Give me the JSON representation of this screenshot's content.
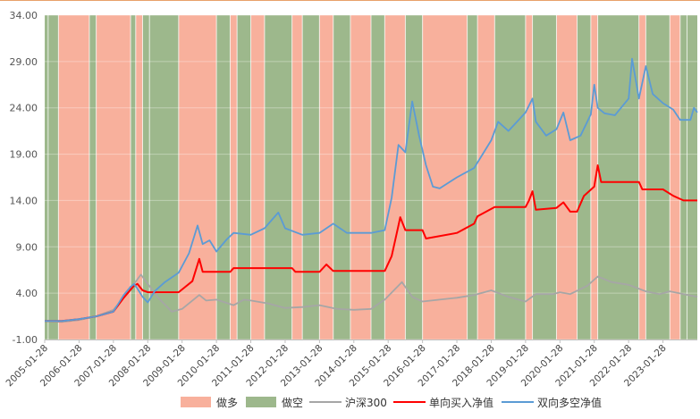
{
  "chart_data": {
    "type": "line",
    "title": "",
    "xlabel": "",
    "ylabel": "",
    "ylim": [
      -1.0,
      34.0
    ],
    "y_ticks": [
      "34.00",
      "29.00",
      "24.00",
      "19.00",
      "14.00",
      "9.00",
      "4.00",
      "-1.00"
    ],
    "x_ticks": [
      "2005-01-28",
      "2006-01-28",
      "2007-01-28",
      "2008-01-28",
      "2009-01-28",
      "2010-01-28",
      "2011-01-28",
      "2012-01-28",
      "2013-01-28",
      "2014-01-28",
      "2015-01-28",
      "2016-01-28",
      "2017-01-28",
      "2018-01-28",
      "2019-01-28",
      "2020-01-28",
      "2021-01-28",
      "2022-01-28",
      "2023-01-28"
    ],
    "x_range": [
      2005.0,
      2024.0
    ],
    "legend": [
      "做多",
      "做空",
      "沪深300",
      "单向买入净值",
      "双向多空净值"
    ],
    "colors": {
      "long": "#f8b09c",
      "short": "#9db88c",
      "hs300": "#a6a6a6",
      "one_way": "#ff0000",
      "two_way": "#5b9bd5"
    },
    "regimes": [
      {
        "start": 2005.0,
        "end": 2005.1,
        "state": "short"
      },
      {
        "start": 2005.1,
        "end": 2005.4,
        "state": "short"
      },
      {
        "start": 2005.4,
        "end": 2006.3,
        "state": "long"
      },
      {
        "start": 2006.3,
        "end": 2006.5,
        "state": "short"
      },
      {
        "start": 2006.5,
        "end": 2007.5,
        "state": "long"
      },
      {
        "start": 2007.5,
        "end": 2007.65,
        "state": "short"
      },
      {
        "start": 2007.65,
        "end": 2007.85,
        "state": "long"
      },
      {
        "start": 2007.85,
        "end": 2008.05,
        "state": "short"
      },
      {
        "start": 2008.05,
        "end": 2008.9,
        "state": "short"
      },
      {
        "start": 2008.9,
        "end": 2010.0,
        "state": "long"
      },
      {
        "start": 2010.0,
        "end": 2010.4,
        "state": "short"
      },
      {
        "start": 2010.4,
        "end": 2010.6,
        "state": "long"
      },
      {
        "start": 2010.6,
        "end": 2011.0,
        "state": "short"
      },
      {
        "start": 2011.0,
        "end": 2011.4,
        "state": "long"
      },
      {
        "start": 2011.4,
        "end": 2012.2,
        "state": "short"
      },
      {
        "start": 2012.2,
        "end": 2012.5,
        "state": "long"
      },
      {
        "start": 2012.5,
        "end": 2013.0,
        "state": "short"
      },
      {
        "start": 2013.0,
        "end": 2013.4,
        "state": "long"
      },
      {
        "start": 2013.4,
        "end": 2013.9,
        "state": "short"
      },
      {
        "start": 2013.9,
        "end": 2014.5,
        "state": "long"
      },
      {
        "start": 2014.5,
        "end": 2014.9,
        "state": "short"
      },
      {
        "start": 2014.9,
        "end": 2015.5,
        "state": "long"
      },
      {
        "start": 2015.5,
        "end": 2016.0,
        "state": "short"
      },
      {
        "start": 2016.0,
        "end": 2017.3,
        "state": "long"
      },
      {
        "start": 2017.3,
        "end": 2017.6,
        "state": "short"
      },
      {
        "start": 2017.6,
        "end": 2018.1,
        "state": "long"
      },
      {
        "start": 2018.1,
        "end": 2019.0,
        "state": "short"
      },
      {
        "start": 2019.0,
        "end": 2019.2,
        "state": "long"
      },
      {
        "start": 2019.2,
        "end": 2019.9,
        "state": "short"
      },
      {
        "start": 2019.9,
        "end": 2020.5,
        "state": "long"
      },
      {
        "start": 2020.5,
        "end": 2020.9,
        "state": "short"
      },
      {
        "start": 2020.9,
        "end": 2021.1,
        "state": "long"
      },
      {
        "start": 2021.1,
        "end": 2022.3,
        "state": "short"
      },
      {
        "start": 2022.3,
        "end": 2022.5,
        "state": "long"
      },
      {
        "start": 2022.5,
        "end": 2023.2,
        "state": "short"
      },
      {
        "start": 2023.2,
        "end": 2023.5,
        "state": "long"
      },
      {
        "start": 2023.5,
        "end": 2023.7,
        "state": "short"
      },
      {
        "start": 2023.7,
        "end": 2024.0,
        "state": "short"
      }
    ],
    "series": [
      {
        "name": "沪深300",
        "key": "hs300",
        "points": [
          [
            2005.0,
            1.0
          ],
          [
            2005.5,
            0.9
          ],
          [
            2006.0,
            1.1
          ],
          [
            2006.5,
            1.5
          ],
          [
            2007.0,
            2.2
          ],
          [
            2007.3,
            3.5
          ],
          [
            2007.6,
            5.0
          ],
          [
            2007.8,
            6.0
          ],
          [
            2008.0,
            5.0
          ],
          [
            2008.3,
            3.5
          ],
          [
            2008.7,
            2.0
          ],
          [
            2009.0,
            2.3
          ],
          [
            2009.5,
            3.8
          ],
          [
            2009.7,
            3.2
          ],
          [
            2010.0,
            3.3
          ],
          [
            2010.5,
            2.7
          ],
          [
            2010.8,
            3.3
          ],
          [
            2011.0,
            3.2
          ],
          [
            2011.5,
            2.9
          ],
          [
            2012.0,
            2.4
          ],
          [
            2012.5,
            2.5
          ],
          [
            2013.0,
            2.7
          ],
          [
            2013.5,
            2.3
          ],
          [
            2014.0,
            2.2
          ],
          [
            2014.5,
            2.3
          ],
          [
            2014.9,
            3.3
          ],
          [
            2015.4,
            5.2
          ],
          [
            2015.7,
            3.6
          ],
          [
            2016.0,
            3.1
          ],
          [
            2016.5,
            3.3
          ],
          [
            2017.0,
            3.5
          ],
          [
            2017.5,
            3.8
          ],
          [
            2018.0,
            4.3
          ],
          [
            2018.5,
            3.6
          ],
          [
            2019.0,
            3.1
          ],
          [
            2019.3,
            3.9
          ],
          [
            2019.8,
            3.9
          ],
          [
            2020.0,
            4.1
          ],
          [
            2020.3,
            3.9
          ],
          [
            2020.8,
            4.8
          ],
          [
            2021.1,
            5.8
          ],
          [
            2021.5,
            5.2
          ],
          [
            2022.0,
            4.9
          ],
          [
            2022.5,
            4.2
          ],
          [
            2022.9,
            3.9
          ],
          [
            2023.2,
            4.2
          ],
          [
            2023.6,
            3.9
          ],
          [
            2024.0,
            3.6
          ]
        ]
      },
      {
        "name": "单向买入净值",
        "key": "one_way",
        "points": [
          [
            2005.0,
            1.0
          ],
          [
            2005.5,
            1.0
          ],
          [
            2006.0,
            1.2
          ],
          [
            2006.5,
            1.5
          ],
          [
            2007.0,
            2.0
          ],
          [
            2007.3,
            3.5
          ],
          [
            2007.6,
            4.8
          ],
          [
            2007.7,
            5.0
          ],
          [
            2007.85,
            4.3
          ],
          [
            2008.0,
            4.1
          ],
          [
            2008.9,
            4.1
          ],
          [
            2009.3,
            5.3
          ],
          [
            2009.5,
            7.7
          ],
          [
            2009.6,
            6.3
          ],
          [
            2010.0,
            6.3
          ],
          [
            2010.4,
            6.3
          ],
          [
            2010.5,
            6.7
          ],
          [
            2011.5,
            6.7
          ],
          [
            2012.2,
            6.7
          ],
          [
            2012.3,
            6.3
          ],
          [
            2013.0,
            6.3
          ],
          [
            2013.2,
            7.1
          ],
          [
            2013.4,
            6.4
          ],
          [
            2014.9,
            6.4
          ],
          [
            2015.1,
            8.0
          ],
          [
            2015.3,
            11.3
          ],
          [
            2015.35,
            12.2
          ],
          [
            2015.5,
            10.8
          ],
          [
            2015.6,
            10.8
          ],
          [
            2016.0,
            10.8
          ],
          [
            2016.1,
            9.9
          ],
          [
            2017.0,
            10.5
          ],
          [
            2017.5,
            11.5
          ],
          [
            2017.6,
            12.3
          ],
          [
            2018.1,
            13.3
          ],
          [
            2019.0,
            13.3
          ],
          [
            2019.1,
            14.0
          ],
          [
            2019.2,
            15.0
          ],
          [
            2019.3,
            13.0
          ],
          [
            2019.9,
            13.2
          ],
          [
            2020.1,
            13.8
          ],
          [
            2020.3,
            12.8
          ],
          [
            2020.5,
            12.8
          ],
          [
            2020.7,
            14.5
          ],
          [
            2021.0,
            15.5
          ],
          [
            2021.1,
            17.8
          ],
          [
            2021.2,
            16.0
          ],
          [
            2022.3,
            16.0
          ],
          [
            2022.4,
            15.2
          ],
          [
            2023.0,
            15.2
          ],
          [
            2023.3,
            14.5
          ],
          [
            2023.6,
            14.0
          ],
          [
            2024.0,
            14.0
          ]
        ]
      },
      {
        "name": "双向多空净值",
        "key": "two_way",
        "points": [
          [
            2005.0,
            1.0
          ],
          [
            2005.5,
            1.0
          ],
          [
            2006.0,
            1.2
          ],
          [
            2006.5,
            1.5
          ],
          [
            2007.0,
            2.0
          ],
          [
            2007.3,
            3.8
          ],
          [
            2007.5,
            4.7
          ],
          [
            2007.6,
            5.0
          ],
          [
            2007.7,
            4.5
          ],
          [
            2007.85,
            3.6
          ],
          [
            2008.0,
            3.0
          ],
          [
            2008.2,
            4.2
          ],
          [
            2008.5,
            5.2
          ],
          [
            2008.9,
            6.2
          ],
          [
            2009.2,
            8.3
          ],
          [
            2009.45,
            11.3
          ],
          [
            2009.6,
            9.3
          ],
          [
            2009.8,
            9.7
          ],
          [
            2010.0,
            8.5
          ],
          [
            2010.3,
            9.8
          ],
          [
            2010.5,
            10.5
          ],
          [
            2011.0,
            10.3
          ],
          [
            2011.4,
            11.0
          ],
          [
            2011.8,
            12.7
          ],
          [
            2012.0,
            11.0
          ],
          [
            2012.5,
            10.3
          ],
          [
            2013.0,
            10.5
          ],
          [
            2013.4,
            11.5
          ],
          [
            2013.8,
            10.5
          ],
          [
            2014.5,
            10.5
          ],
          [
            2014.9,
            10.8
          ],
          [
            2015.1,
            14.3
          ],
          [
            2015.3,
            20.0
          ],
          [
            2015.5,
            19.2
          ],
          [
            2015.7,
            24.7
          ],
          [
            2015.9,
            21.0
          ],
          [
            2016.1,
            17.8
          ],
          [
            2016.3,
            15.5
          ],
          [
            2016.5,
            15.3
          ],
          [
            2017.0,
            16.5
          ],
          [
            2017.5,
            17.5
          ],
          [
            2018.0,
            20.5
          ],
          [
            2018.2,
            22.5
          ],
          [
            2018.5,
            21.5
          ],
          [
            2019.0,
            23.5
          ],
          [
            2019.2,
            25.0
          ],
          [
            2019.3,
            22.5
          ],
          [
            2019.6,
            21.0
          ],
          [
            2019.9,
            21.7
          ],
          [
            2020.1,
            23.5
          ],
          [
            2020.3,
            20.5
          ],
          [
            2020.6,
            21.0
          ],
          [
            2020.9,
            23.3
          ],
          [
            2021.0,
            26.5
          ],
          [
            2021.1,
            24.0
          ],
          [
            2021.3,
            23.4
          ],
          [
            2021.6,
            23.2
          ],
          [
            2022.0,
            25.0
          ],
          [
            2022.1,
            29.3
          ],
          [
            2022.3,
            25.0
          ],
          [
            2022.5,
            28.5
          ],
          [
            2022.7,
            25.5
          ],
          [
            2023.0,
            24.5
          ],
          [
            2023.3,
            23.8
          ],
          [
            2023.5,
            22.7
          ],
          [
            2023.8,
            22.7
          ],
          [
            2023.9,
            24.0
          ],
          [
            2024.0,
            23.5
          ]
        ]
      }
    ]
  }
}
